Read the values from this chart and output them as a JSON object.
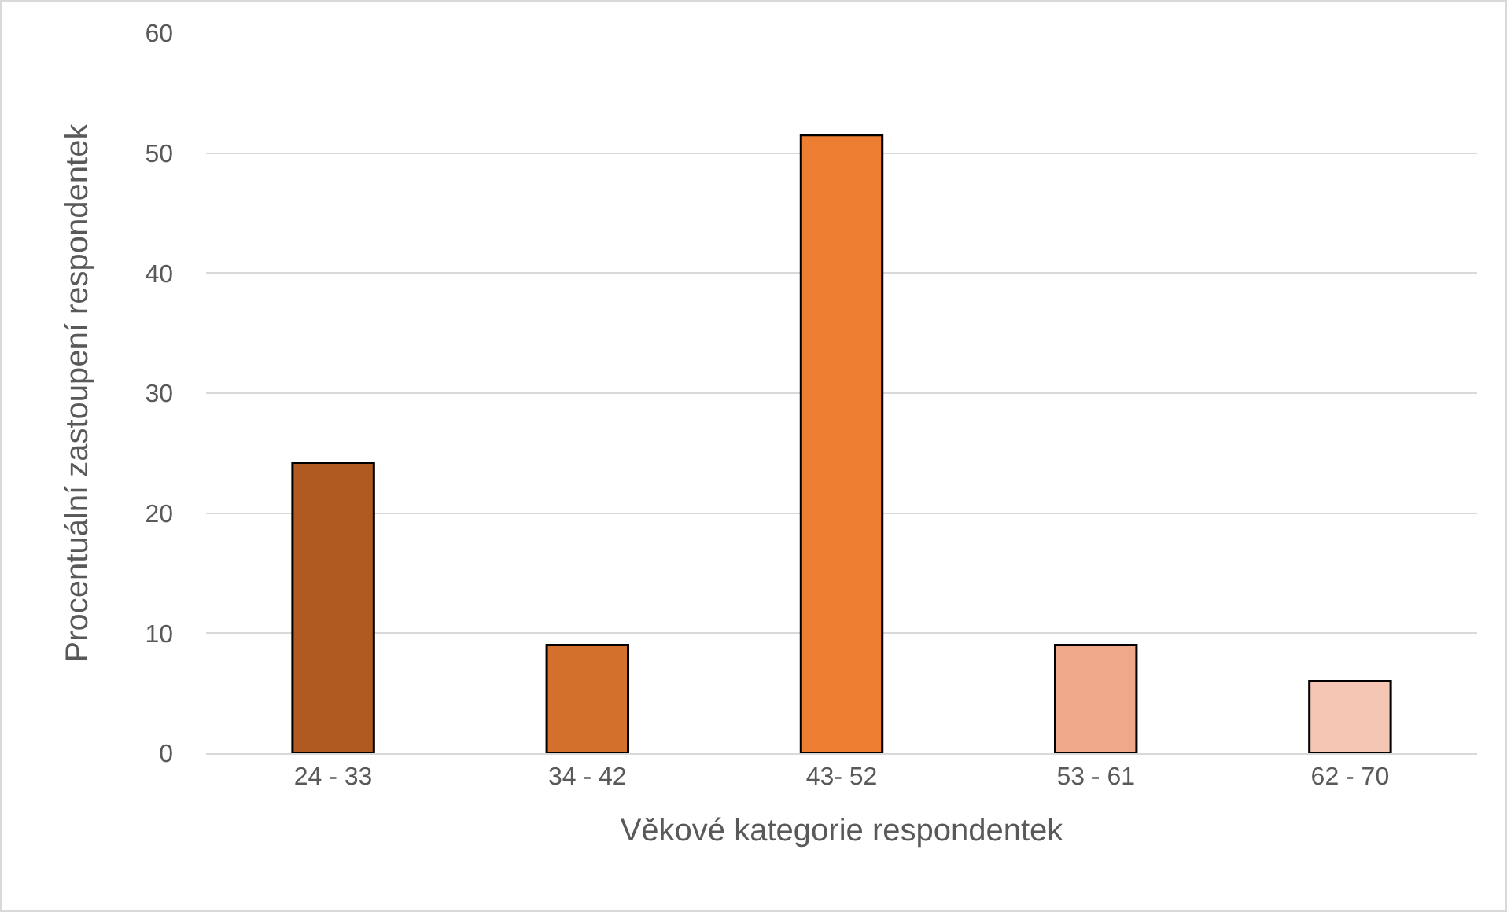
{
  "chart_data": {
    "type": "bar",
    "xlabel": "Věkové kategorie respondentek",
    "ylabel": "Procentuální zastoupení respondentek",
    "categories": [
      "24 - 33",
      "34 - 42",
      "43- 52",
      "53 - 61",
      "62 - 70"
    ],
    "values": [
      24.2,
      9.0,
      51.5,
      9.0,
      6.0
    ],
    "colors": [
      "#b05a22",
      "#d2702c",
      "#ed7d31",
      "#f0a88a",
      "#f5c6b4"
    ],
    "ylim": [
      0,
      60
    ],
    "yticks": [
      0,
      10,
      20,
      30,
      40,
      50,
      60
    ],
    "grid": "y",
    "legend": false
  }
}
